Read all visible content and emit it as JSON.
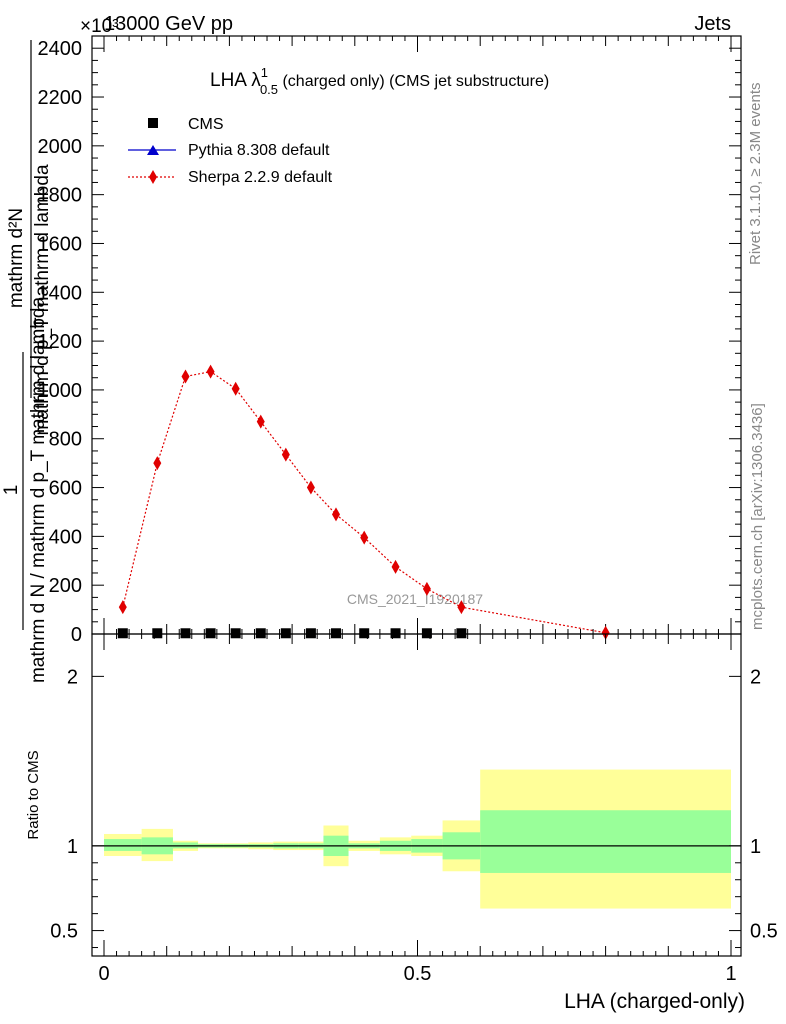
{
  "header": {
    "left": "13000 GeV pp",
    "right": "Jets",
    "exponent": "×10³"
  },
  "side_labels": {
    "rivet": "Rivet 3.1.10, ≥ 2.3M events",
    "mcplots": "mcplots.cern.ch [arXiv:1306.3436]"
  },
  "watermark": "CMS_2021_I1920187",
  "plot_title": {
    "main": "LHA λ",
    "sup": "1",
    "sub": "0.5",
    "rest": " (charged only) (CMS jet substructure)"
  },
  "legend": [
    {
      "label": "CMS",
      "marker": "square",
      "color": "#000000"
    },
    {
      "label": "Pythia 8.308 default",
      "marker": "triangle",
      "color": "#0000cc"
    },
    {
      "label": "Sherpa 2.2.9 default",
      "marker": "diamond",
      "color": "#e00000"
    }
  ],
  "y_axis_label": "1 / mathrm d N / mathrm d p_T mathrm d mathrm d lambda · mathrm d²N / mathrm d p_T mathrm d lambda",
  "y_axis_label_parts": {
    "numer_top": "mathrm d²N",
    "numer_bottom": "mathrm d p_T mathrm d lambda",
    "one": "1",
    "denom": "mathrm d N / mathrm d p_T mathrm d lambda"
  },
  "ratio_ylabel": "Ratio to CMS",
  "x_axis_label": "LHA (charged-only)",
  "chart_data": [
    {
      "type": "line",
      "panel": "main",
      "title": "LHA λ^1_0.5 (charged only) (CMS jet substructure)",
      "xlabel": "LHA (charged-only)",
      "xlim": [
        0,
        1
      ],
      "ylim": [
        0,
        2.45
      ],
      "y_multiplier": "×10³",
      "x_ticks": [
        "0",
        "0.5",
        "1"
      ],
      "y_ticks": [
        "0",
        "200",
        "400",
        "600",
        "800",
        "1000",
        "1200",
        "1400",
        "1600",
        "1800",
        "2000",
        "2200",
        "2400"
      ],
      "series": [
        {
          "name": "CMS",
          "marker": "square",
          "x": [
            0.03,
            0.085,
            0.13,
            0.17,
            0.21,
            0.25,
            0.29,
            0.33,
            0.37,
            0.415,
            0.465,
            0.515,
            0.57
          ],
          "y": [
            0.003,
            0.003,
            0.003,
            0.003,
            0.003,
            0.003,
            0.003,
            0.003,
            0.003,
            0.003,
            0.003,
            0.003,
            0.003
          ]
        },
        {
          "name": "Pythia 8.308 default",
          "marker": "triangle",
          "x": [
            0.03,
            0.085,
            0.13,
            0.17,
            0.21,
            0.25,
            0.29,
            0.33,
            0.37,
            0.415,
            0.465,
            0.515,
            0.57
          ],
          "y": [
            0.002,
            0.002,
            0.002,
            0.002,
            0.002,
            0.002,
            0.002,
            0.002,
            0.002,
            0.002,
            0.002,
            0.002,
            0.002
          ]
        },
        {
          "name": "Sherpa 2.2.9 default",
          "marker": "diamond",
          "x": [
            0.03,
            0.085,
            0.13,
            0.17,
            0.21,
            0.25,
            0.29,
            0.33,
            0.37,
            0.415,
            0.465,
            0.515,
            0.57,
            0.8
          ],
          "y": [
            0.11,
            0.7,
            1.055,
            1.075,
            1.005,
            0.87,
            0.735,
            0.6,
            0.49,
            0.395,
            0.275,
            0.185,
            0.11,
            0.005
          ]
        }
      ]
    },
    {
      "type": "area",
      "panel": "ratio",
      "ylabel": "Ratio to CMS",
      "xlabel": "LHA (charged-only)",
      "xlim": [
        0,
        1
      ],
      "ylim": [
        0.35,
        2.25
      ],
      "y_ticks": [
        "0.5",
        "1",
        "2"
      ],
      "reference_line": 1,
      "bins": [
        {
          "x0": 0.0,
          "x1": 0.06,
          "inner": [
            0.97,
            1.04
          ],
          "outer": [
            0.94,
            1.07
          ]
        },
        {
          "x0": 0.06,
          "x1": 0.11,
          "inner": [
            0.95,
            1.05
          ],
          "outer": [
            0.91,
            1.1
          ]
        },
        {
          "x0": 0.11,
          "x1": 0.15,
          "inner": [
            0.985,
            1.02
          ],
          "outer": [
            0.97,
            1.03
          ]
        },
        {
          "x0": 0.15,
          "x1": 0.19,
          "inner": [
            0.99,
            1.01
          ],
          "outer": [
            0.985,
            1.015
          ]
        },
        {
          "x0": 0.19,
          "x1": 0.23,
          "inner": [
            0.99,
            1.01
          ],
          "outer": [
            0.985,
            1.015
          ]
        },
        {
          "x0": 0.23,
          "x1": 0.27,
          "inner": [
            0.99,
            1.01
          ],
          "outer": [
            0.98,
            1.02
          ]
        },
        {
          "x0": 0.27,
          "x1": 0.31,
          "inner": [
            0.985,
            1.015
          ],
          "outer": [
            0.975,
            1.025
          ]
        },
        {
          "x0": 0.31,
          "x1": 0.35,
          "inner": [
            0.985,
            1.015
          ],
          "outer": [
            0.975,
            1.025
          ]
        },
        {
          "x0": 0.35,
          "x1": 0.39,
          "inner": [
            0.94,
            1.06
          ],
          "outer": [
            0.88,
            1.12
          ]
        },
        {
          "x0": 0.39,
          "x1": 0.44,
          "inner": [
            0.985,
            1.015
          ],
          "outer": [
            0.97,
            1.03
          ]
        },
        {
          "x0": 0.44,
          "x1": 0.49,
          "inner": [
            0.97,
            1.03
          ],
          "outer": [
            0.95,
            1.05
          ]
        },
        {
          "x0": 0.49,
          "x1": 0.54,
          "inner": [
            0.96,
            1.04
          ],
          "outer": [
            0.94,
            1.06
          ]
        },
        {
          "x0": 0.54,
          "x1": 0.6,
          "inner": [
            0.92,
            1.08
          ],
          "outer": [
            0.85,
            1.15
          ]
        },
        {
          "x0": 0.6,
          "x1": 1.0,
          "inner": [
            0.84,
            1.21
          ],
          "outer": [
            0.63,
            1.45
          ]
        }
      ]
    }
  ],
  "colors": {
    "inner_band": "#99ff99",
    "outer_band": "#ffff99",
    "sherpa": "#e00000",
    "pythia": "#0000cc",
    "cms": "#000000",
    "gray_text": "#888888"
  }
}
